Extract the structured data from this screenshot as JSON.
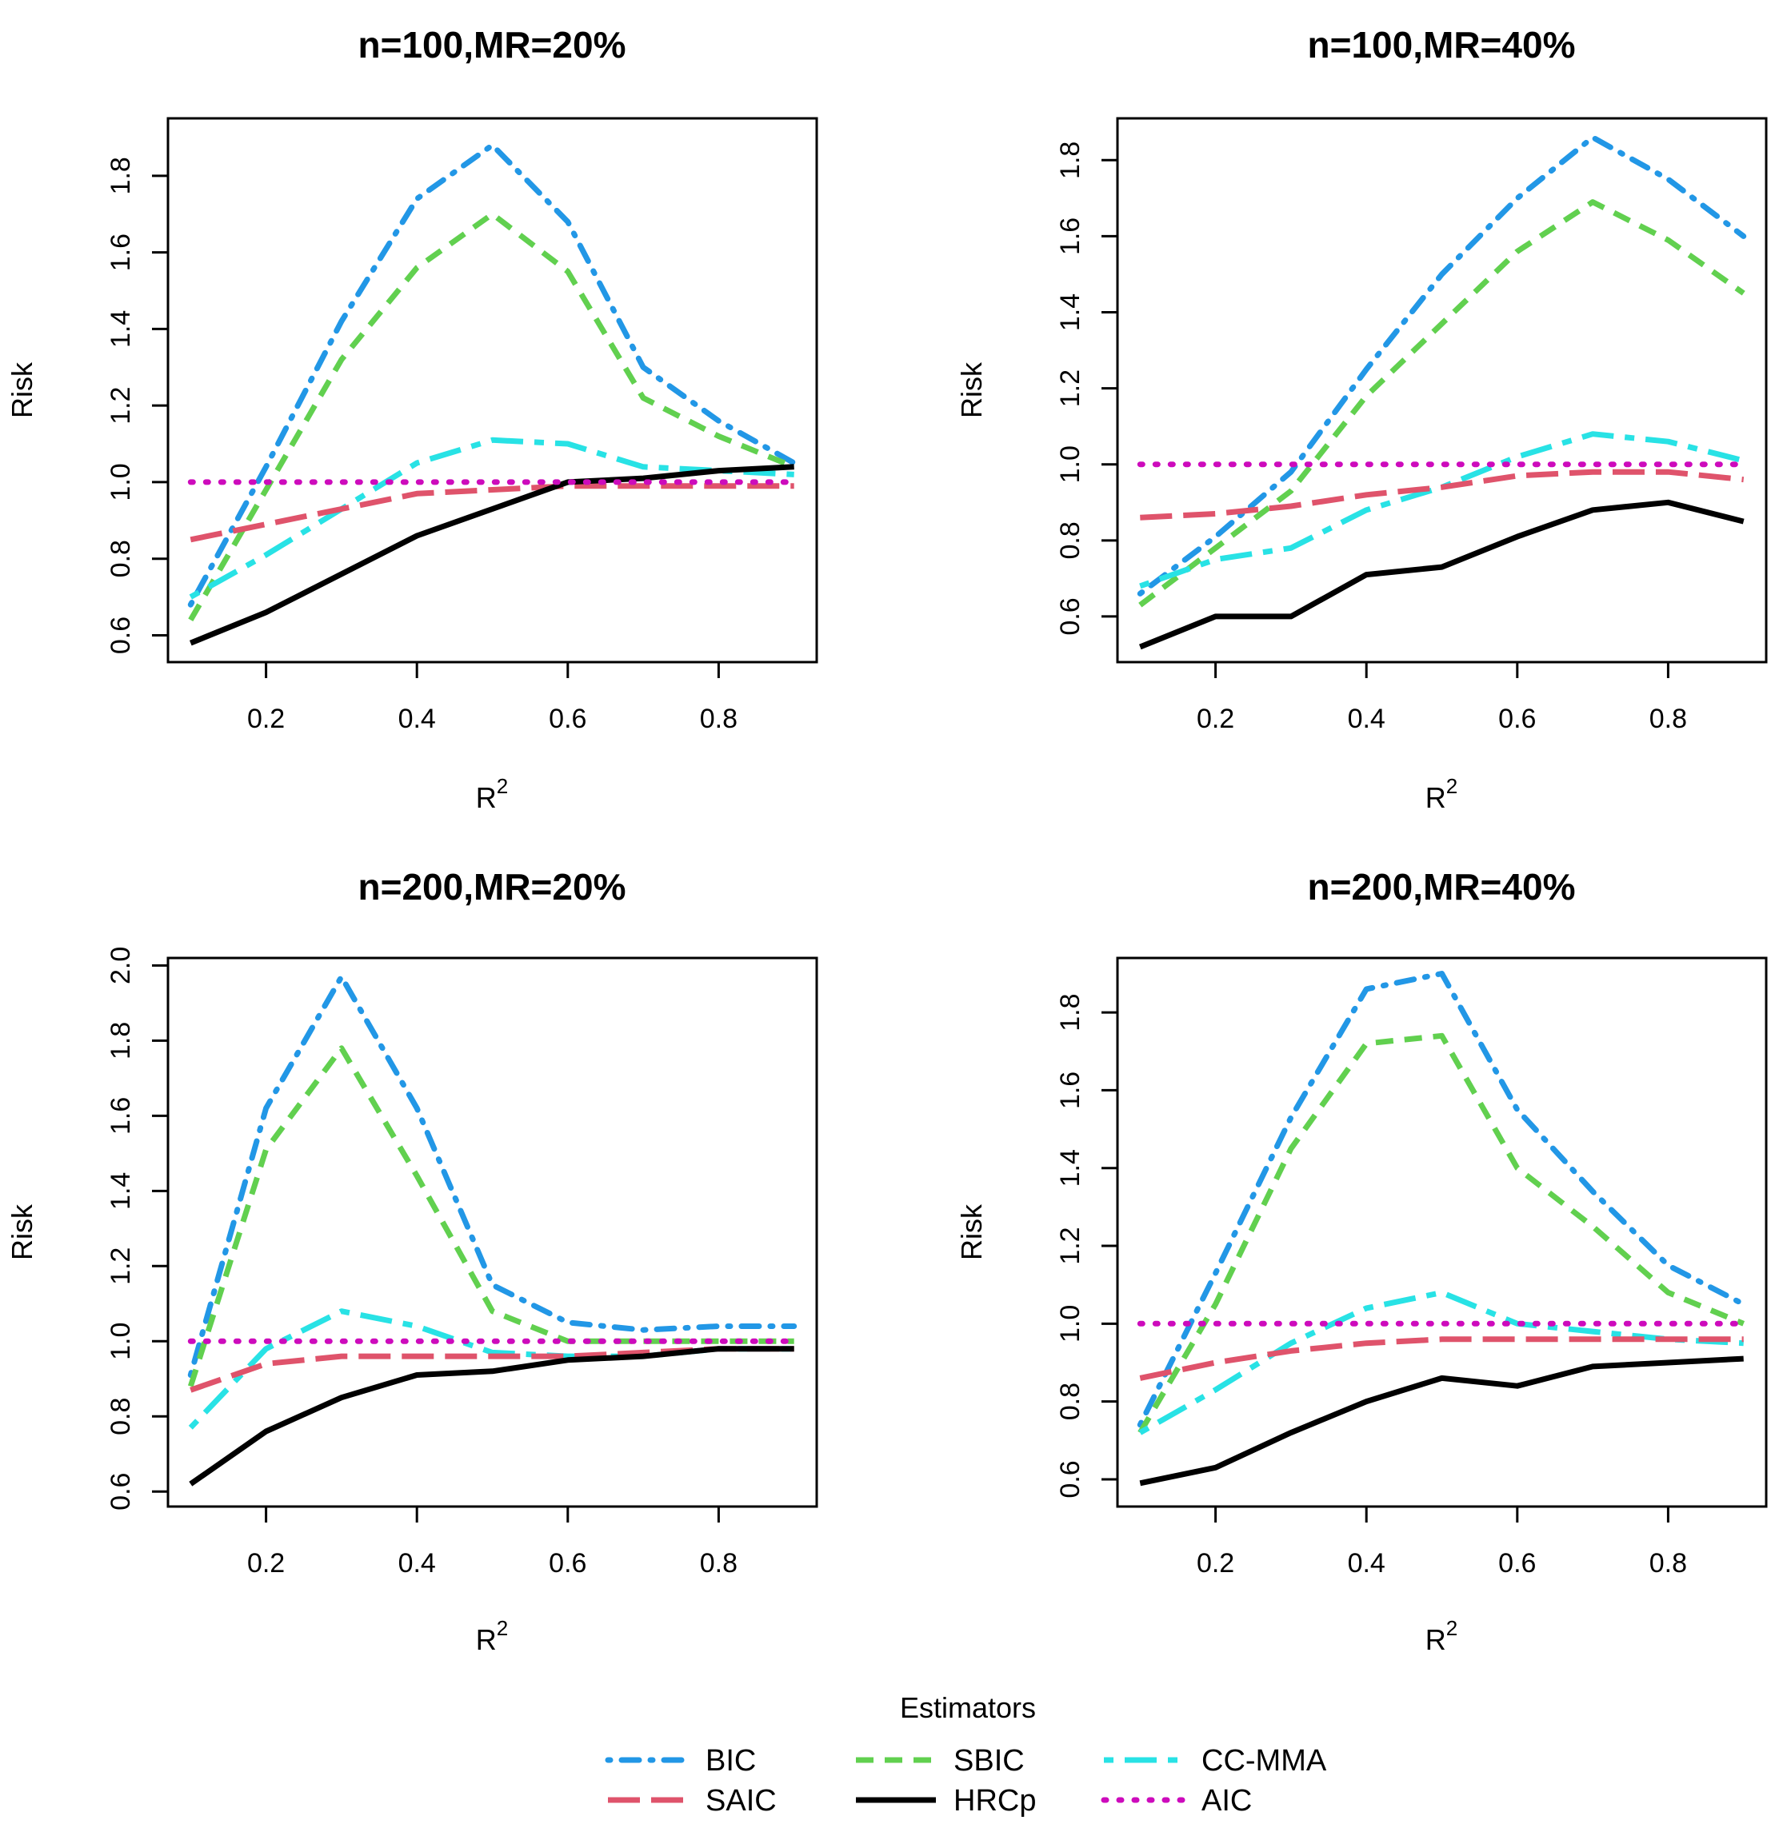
{
  "chart_data": [
    {
      "type": "line",
      "title": "n=100,MR=20%",
      "xlabel": "R",
      "xlabel_sup": "2",
      "ylabel": "Risk",
      "x": [
        0.1,
        0.2,
        0.3,
        0.4,
        0.5,
        0.6,
        0.7,
        0.8,
        0.9
      ],
      "xticks": [
        "0.2",
        "0.4",
        "0.6",
        "0.8"
      ],
      "xlim": [
        0.07,
        0.93
      ],
      "ylim": [
        0.53,
        1.95
      ],
      "yticks": [
        "0.6",
        "0.8",
        "1.0",
        "1.2",
        "1.4",
        "1.6",
        "1.8"
      ],
      "series": [
        {
          "name": "BIC",
          "values": [
            0.68,
            1.04,
            1.42,
            1.74,
            1.88,
            1.68,
            1.3,
            1.16,
            1.05
          ]
        },
        {
          "name": "SBIC",
          "values": [
            0.64,
            0.98,
            1.32,
            1.56,
            1.7,
            1.55,
            1.22,
            1.12,
            1.04
          ]
        },
        {
          "name": "CC-MMA",
          "values": [
            0.7,
            0.81,
            0.93,
            1.05,
            1.11,
            1.1,
            1.04,
            1.03,
            1.02
          ]
        },
        {
          "name": "SAIC",
          "values": [
            0.85,
            0.89,
            0.93,
            0.97,
            0.98,
            0.99,
            0.99,
            0.99,
            0.99
          ]
        },
        {
          "name": "HRCp",
          "values": [
            0.58,
            0.66,
            0.76,
            0.86,
            0.93,
            1.0,
            1.01,
            1.03,
            1.04
          ]
        },
        {
          "name": "AIC",
          "values": [
            1.0,
            1.0,
            1.0,
            1.0,
            1.0,
            1.0,
            1.0,
            1.0,
            1.0
          ]
        }
      ]
    },
    {
      "type": "line",
      "title": "n=100,MR=40%",
      "xlabel": "R",
      "xlabel_sup": "2",
      "ylabel": "Risk",
      "x": [
        0.1,
        0.2,
        0.3,
        0.4,
        0.5,
        0.6,
        0.7,
        0.8,
        0.9
      ],
      "xticks": [
        "0.2",
        "0.4",
        "0.6",
        "0.8"
      ],
      "xlim": [
        0.07,
        0.93
      ],
      "ylim": [
        0.48,
        1.91
      ],
      "yticks": [
        "0.6",
        "0.8",
        "1.0",
        "1.2",
        "1.4",
        "1.6",
        "1.8"
      ],
      "series": [
        {
          "name": "BIC",
          "values": [
            0.66,
            0.81,
            0.98,
            1.25,
            1.5,
            1.7,
            1.86,
            1.75,
            1.6
          ]
        },
        {
          "name": "SBIC",
          "values": [
            0.63,
            0.78,
            0.93,
            1.18,
            1.37,
            1.56,
            1.69,
            1.59,
            1.45
          ]
        },
        {
          "name": "CC-MMA",
          "values": [
            0.68,
            0.75,
            0.78,
            0.88,
            0.94,
            1.02,
            1.08,
            1.06,
            1.01
          ]
        },
        {
          "name": "SAIC",
          "values": [
            0.86,
            0.87,
            0.89,
            0.92,
            0.94,
            0.97,
            0.98,
            0.98,
            0.96
          ]
        },
        {
          "name": "HRCp",
          "values": [
            0.52,
            0.6,
            0.6,
            0.71,
            0.73,
            0.81,
            0.88,
            0.9,
            0.85
          ]
        },
        {
          "name": "AIC",
          "values": [
            1.0,
            1.0,
            1.0,
            1.0,
            1.0,
            1.0,
            1.0,
            1.0,
            1.0
          ]
        }
      ]
    },
    {
      "type": "line",
      "title": "n=200,MR=20%",
      "xlabel": "R",
      "xlabel_sup": "2",
      "ylabel": "Risk",
      "x": [
        0.1,
        0.2,
        0.3,
        0.4,
        0.5,
        0.6,
        0.7,
        0.8,
        0.9
      ],
      "xticks": [
        "0.2",
        "0.4",
        "0.6",
        "0.8"
      ],
      "xlim": [
        0.07,
        0.93
      ],
      "ylim": [
        0.56,
        2.02
      ],
      "yticks": [
        "0.6",
        "0.8",
        "1.0",
        "1.2",
        "1.4",
        "1.6",
        "1.8",
        "2.0"
      ],
      "series": [
        {
          "name": "BIC",
          "values": [
            0.91,
            1.62,
            1.97,
            1.62,
            1.15,
            1.05,
            1.03,
            1.04,
            1.04
          ]
        },
        {
          "name": "SBIC",
          "values": [
            0.88,
            1.51,
            1.78,
            1.44,
            1.08,
            1.0,
            1.0,
            1.0,
            1.0
          ]
        },
        {
          "name": "CC-MMA",
          "values": [
            0.77,
            0.98,
            1.08,
            1.04,
            0.97,
            0.96,
            0.96,
            0.98,
            0.98
          ]
        },
        {
          "name": "SAIC",
          "values": [
            0.87,
            0.94,
            0.96,
            0.96,
            0.96,
            0.96,
            0.97,
            0.98,
            0.98
          ]
        },
        {
          "name": "HRCp",
          "values": [
            0.62,
            0.76,
            0.85,
            0.91,
            0.92,
            0.95,
            0.96,
            0.98,
            0.98
          ]
        },
        {
          "name": "AIC",
          "values": [
            1.0,
            1.0,
            1.0,
            1.0,
            1.0,
            1.0,
            1.0,
            1.0,
            1.0
          ]
        }
      ]
    },
    {
      "type": "line",
      "title": "n=200,MR=40%",
      "xlabel": "R",
      "xlabel_sup": "2",
      "ylabel": "Risk",
      "x": [
        0.1,
        0.2,
        0.3,
        0.4,
        0.5,
        0.6,
        0.7,
        0.8,
        0.9
      ],
      "xticks": [
        "0.2",
        "0.4",
        "0.6",
        "0.8"
      ],
      "xlim": [
        0.07,
        0.93
      ],
      "ylim": [
        0.53,
        1.94
      ],
      "yticks": [
        "0.6",
        "0.8",
        "1.0",
        "1.2",
        "1.4",
        "1.6",
        "1.8"
      ],
      "series": [
        {
          "name": "BIC",
          "values": [
            0.74,
            1.13,
            1.53,
            1.86,
            1.9,
            1.55,
            1.34,
            1.15,
            1.05
          ]
        },
        {
          "name": "SBIC",
          "values": [
            0.72,
            1.05,
            1.45,
            1.72,
            1.74,
            1.4,
            1.25,
            1.08,
            1.0
          ]
        },
        {
          "name": "CC-MMA",
          "values": [
            0.72,
            0.83,
            0.95,
            1.04,
            1.08,
            1.0,
            0.98,
            0.96,
            0.95
          ]
        },
        {
          "name": "SAIC",
          "values": [
            0.86,
            0.9,
            0.93,
            0.95,
            0.96,
            0.96,
            0.96,
            0.96,
            0.96
          ]
        },
        {
          "name": "HRCp",
          "values": [
            0.59,
            0.63,
            0.72,
            0.8,
            0.86,
            0.84,
            0.89,
            0.9,
            0.91
          ]
        },
        {
          "name": "AIC",
          "values": [
            1.0,
            1.0,
            1.0,
            1.0,
            1.0,
            1.0,
            1.0,
            1.0,
            1.0
          ]
        }
      ]
    }
  ],
  "legend": {
    "title": "Estimators",
    "position": "bottom-center",
    "items": [
      {
        "name": "BIC",
        "color": "#2297E6",
        "style": "dotdash"
      },
      {
        "name": "SBIC",
        "color": "#61D04F",
        "style": "dashed"
      },
      {
        "name": "CC-MMA",
        "color": "#28E2E5",
        "style": "twodash"
      },
      {
        "name": "SAIC",
        "color": "#DF536B",
        "style": "longdash"
      },
      {
        "name": "HRCp",
        "color": "#000000",
        "style": "solid"
      },
      {
        "name": "AIC",
        "color": "#CD0BBC",
        "style": "dotted"
      }
    ]
  }
}
